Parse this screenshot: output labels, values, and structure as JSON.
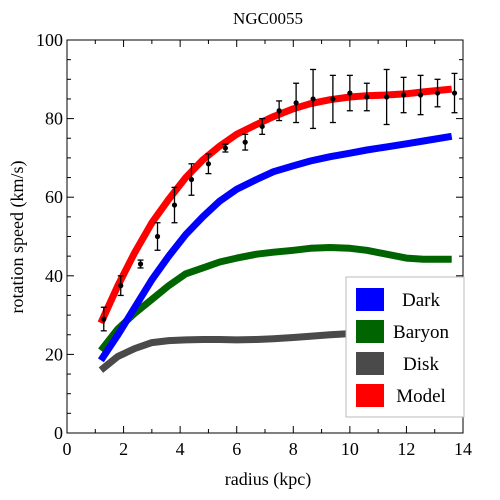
{
  "chart_data": {
    "type": "line",
    "title": "NGC0055",
    "xlabel": "radius (kpc)",
    "ylabel": "rotation speed (km/s)",
    "xlim": [
      0,
      14
    ],
    "ylim": [
      0,
      100
    ],
    "xticks": [
      0,
      2,
      4,
      6,
      8,
      10,
      12,
      14
    ],
    "yticks": [
      0,
      20,
      40,
      60,
      80,
      100
    ],
    "grid": false,
    "legend_position": "bottom-right",
    "series": [
      {
        "name": "Dark",
        "color": "#0000ff",
        "x": [
          1.2,
          1.8,
          2.4,
          3.0,
          3.6,
          4.2,
          4.8,
          5.4,
          6.0,
          6.7,
          7.3,
          8.0,
          8.6,
          9.3,
          10.0,
          10.6,
          11.3,
          12.0,
          12.6,
          13.6
        ],
        "values": [
          18.5,
          25.0,
          32.0,
          39.0,
          45.0,
          50.5,
          55.0,
          59.0,
          62.0,
          64.5,
          66.5,
          68.0,
          69.2,
          70.3,
          71.2,
          72.0,
          72.8,
          73.6,
          74.3,
          75.5
        ]
      },
      {
        "name": "Baryon",
        "color": "#006400",
        "x": [
          1.2,
          1.8,
          2.4,
          3.0,
          3.6,
          4.2,
          4.8,
          5.4,
          6.0,
          6.7,
          7.3,
          8.0,
          8.6,
          9.3,
          10.0,
          10.6,
          11.3,
          12.0,
          12.6,
          13.6
        ],
        "values": [
          21.0,
          26.5,
          30.5,
          34.0,
          37.5,
          40.5,
          42.0,
          43.5,
          44.5,
          45.5,
          46.0,
          46.5,
          47.0,
          47.2,
          47.0,
          46.5,
          45.5,
          44.5,
          44.2,
          44.2
        ]
      },
      {
        "name": "Disk",
        "color": "#4a4a4a",
        "x": [
          1.2,
          1.8,
          2.4,
          3.0,
          3.6,
          4.2,
          4.8,
          5.4,
          6.0,
          6.7,
          7.3,
          8.0,
          8.6,
          9.3,
          10.0,
          10.6,
          11.3,
          12.0,
          12.6,
          13.6
        ],
        "values": [
          16.0,
          19.5,
          21.5,
          23.0,
          23.5,
          23.7,
          23.8,
          23.8,
          23.7,
          23.8,
          24.0,
          24.3,
          24.6,
          25.0,
          25.3,
          25.8,
          26.3,
          27.0,
          27.6,
          28.5
        ]
      },
      {
        "name": "Model",
        "color": "#ff0000",
        "x": [
          1.2,
          1.8,
          2.4,
          3.0,
          3.6,
          4.2,
          4.8,
          5.4,
          6.0,
          6.7,
          7.3,
          8.0,
          8.6,
          9.3,
          10.0,
          10.6,
          11.3,
          12.0,
          12.6,
          13.6
        ],
        "values": [
          28.0,
          37.5,
          46.0,
          53.5,
          59.5,
          65.0,
          69.5,
          73.0,
          76.0,
          78.5,
          80.5,
          82.5,
          83.8,
          84.8,
          85.5,
          85.8,
          86.0,
          86.3,
          86.8,
          87.5
        ]
      }
    ],
    "observed": {
      "x": [
        1.3,
        1.9,
        2.6,
        3.2,
        3.8,
        4.4,
        5.0,
        5.6,
        6.3,
        6.9,
        7.5,
        8.1,
        8.7,
        9.4,
        10.0,
        10.6,
        11.3,
        11.9,
        12.5,
        13.1,
        13.7
      ],
      "values": [
        29.0,
        37.5,
        43.0,
        50.0,
        58.0,
        64.5,
        68.5,
        72.5,
        74.0,
        78.0,
        82.0,
        84.0,
        85.0,
        85.0,
        86.5,
        85.5,
        85.5,
        86.0,
        86.0,
        86.5,
        86.5
      ],
      "errors": [
        3.0,
        2.5,
        1.0,
        3.5,
        4.5,
        4.0,
        2.5,
        1.0,
        2.0,
        2.0,
        2.5,
        5.0,
        7.5,
        6.0,
        4.5,
        3.5,
        7.0,
        4.5,
        5.0,
        3.5,
        5.0
      ]
    }
  }
}
